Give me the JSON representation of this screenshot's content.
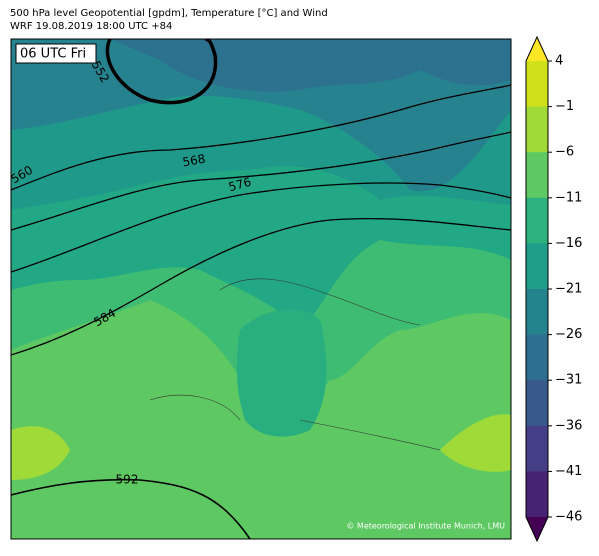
{
  "header": {
    "title": "500 hPa level Geopotential [gpdm], Temperature [°C] and Wind",
    "subtitle": "WRF 19.08.2019 18:00 UTC +84"
  },
  "map": {
    "time_label": "06 UTC Fri",
    "contour_labels": [
      "552",
      "560",
      "568",
      "576",
      "584",
      "592"
    ],
    "copyright": "© Meteorological Institute Munich, LMU"
  },
  "colorbar": {
    "lim": [
      -46,
      4
    ],
    "ticks": [
      4,
      {
        "value": -1,
        "label": "−1"
      },
      {
        "value": -6,
        "label": "−6"
      },
      {
        "value": -11,
        "label": "−11"
      },
      {
        "value": -16,
        "label": "−16"
      },
      {
        "value": -21,
        "label": "−21"
      },
      {
        "value": -26,
        "label": "−26"
      },
      {
        "value": -31,
        "label": "−31"
      },
      {
        "value": -36,
        "label": "−36"
      },
      {
        "value": -41,
        "label": "−41"
      },
      {
        "value": -46,
        "label": "−46"
      }
    ],
    "colors": [
      "#fde725",
      "#d0e11c",
      "#a0da39",
      "#5ec962",
      "#2db27d",
      "#1f9e89",
      "#25838e",
      "#2e6e8e",
      "#38598c",
      "#433e85",
      "#482374",
      "#440154"
    ]
  }
}
